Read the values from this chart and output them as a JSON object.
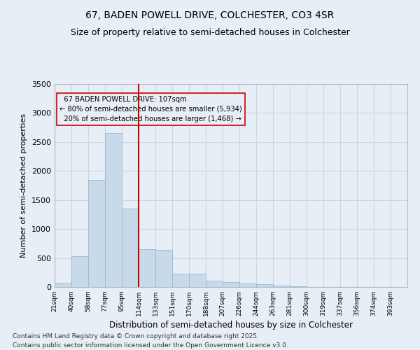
{
  "title": "67, BADEN POWELL DRIVE, COLCHESTER, CO3 4SR",
  "subtitle": "Size of property relative to semi-detached houses in Colchester",
  "xlabel": "Distribution of semi-detached houses by size in Colchester",
  "ylabel": "Number of semi-detached properties",
  "property_label": "67 BADEN POWELL DRIVE: 107sqm",
  "pct_smaller": 80,
  "count_smaller": "5,934",
  "pct_larger": 20,
  "count_larger": "1,468",
  "categories": [
    "21sqm",
    "40sqm",
    "58sqm",
    "77sqm",
    "95sqm",
    "114sqm",
    "133sqm",
    "151sqm",
    "170sqm",
    "188sqm",
    "207sqm",
    "226sqm",
    "244sqm",
    "263sqm",
    "281sqm",
    "300sqm",
    "319sqm",
    "337sqm",
    "356sqm",
    "374sqm",
    "393sqm"
  ],
  "values": [
    75,
    530,
    1850,
    2650,
    1350,
    650,
    640,
    230,
    230,
    110,
    90,
    60,
    45,
    20,
    8,
    4,
    3,
    2,
    1,
    1,
    0
  ],
  "red_bar_index": 4,
  "bar_color": "#c8d9ea",
  "bar_edge_color": "#9ab8d0",
  "grid_color": "#ccd6e0",
  "background_color": "#e8eef5",
  "red_line_color": "#cc0000",
  "annotation_box_edge_color": "#cc0000",
  "ylim": [
    0,
    3500
  ],
  "yticks": [
    0,
    500,
    1000,
    1500,
    2000,
    2500,
    3000,
    3500
  ],
  "footer1": "Contains HM Land Registry data © Crown copyright and database right 2025.",
  "footer2": "Contains public sector information licensed under the Open Government Licence v3.0.",
  "title_fontsize": 10,
  "subtitle_fontsize": 9
}
